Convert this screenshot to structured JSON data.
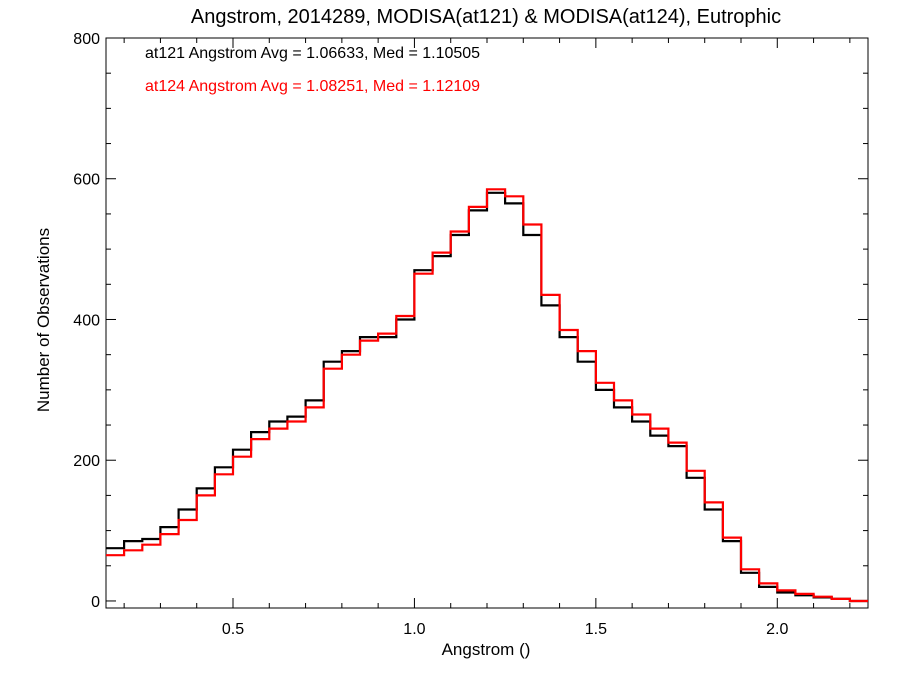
{
  "chart_data": {
    "type": "line",
    "title": "Angstrom, 2014289, MODISA(at121) & MODISA(at124), Eutrophic",
    "xlabel": "Angstrom ()",
    "ylabel": "Number of Observations",
    "xlim": [
      0.15,
      2.25
    ],
    "ylim": [
      -10,
      800
    ],
    "x_ticks": [
      0.5,
      1.0,
      1.5,
      2.0
    ],
    "x_tick_labels": [
      "0.5",
      "1.0",
      "1.5",
      "2.0"
    ],
    "y_ticks": [
      0,
      200,
      400,
      600,
      800
    ],
    "y_tick_labels": [
      "0",
      "200",
      "400",
      "600",
      "800"
    ],
    "grid": false,
    "step": true,
    "series": [
      {
        "name": "at121",
        "color": "#000000",
        "x": [
          0.15,
          0.2,
          0.25,
          0.3,
          0.35,
          0.4,
          0.45,
          0.5,
          0.55,
          0.6,
          0.65,
          0.7,
          0.75,
          0.8,
          0.85,
          0.9,
          0.95,
          1.0,
          1.05,
          1.1,
          1.15,
          1.2,
          1.25,
          1.3,
          1.35,
          1.4,
          1.45,
          1.5,
          1.55,
          1.6,
          1.65,
          1.7,
          1.75,
          1.8,
          1.85,
          1.9,
          1.95,
          2.0,
          2.05,
          2.1,
          2.15,
          2.2,
          2.25
        ],
        "values": [
          75,
          85,
          88,
          105,
          130,
          160,
          190,
          215,
          240,
          255,
          262,
          285,
          340,
          355,
          375,
          375,
          400,
          470,
          490,
          520,
          555,
          580,
          565,
          520,
          420,
          375,
          340,
          300,
          275,
          255,
          235,
          220,
          175,
          130,
          85,
          40,
          20,
          12,
          8,
          5,
          3,
          0,
          0
        ]
      },
      {
        "name": "at124",
        "color": "#ff0000",
        "x": [
          0.15,
          0.2,
          0.25,
          0.3,
          0.35,
          0.4,
          0.45,
          0.5,
          0.55,
          0.6,
          0.65,
          0.7,
          0.75,
          0.8,
          0.85,
          0.9,
          0.95,
          1.0,
          1.05,
          1.1,
          1.15,
          1.2,
          1.25,
          1.3,
          1.35,
          1.4,
          1.45,
          1.5,
          1.55,
          1.6,
          1.65,
          1.7,
          1.75,
          1.8,
          1.85,
          1.9,
          1.95,
          2.0,
          2.05,
          2.1,
          2.15,
          2.2,
          2.25
        ],
        "values": [
          65,
          72,
          80,
          95,
          115,
          150,
          180,
          205,
          230,
          245,
          255,
          275,
          330,
          350,
          370,
          380,
          405,
          465,
          495,
          525,
          560,
          585,
          575,
          535,
          435,
          385,
          355,
          310,
          285,
          265,
          245,
          225,
          185,
          140,
          90,
          45,
          25,
          15,
          10,
          6,
          3,
          0,
          0
        ]
      }
    ],
    "annotations": [
      {
        "text": "at121 Angstrom Avg = 1.06633, Med = 1.10505",
        "color": "#000000"
      },
      {
        "text": "at124 Angstrom Avg = 1.08251, Med = 1.12109",
        "color": "#ff0000"
      }
    ]
  }
}
